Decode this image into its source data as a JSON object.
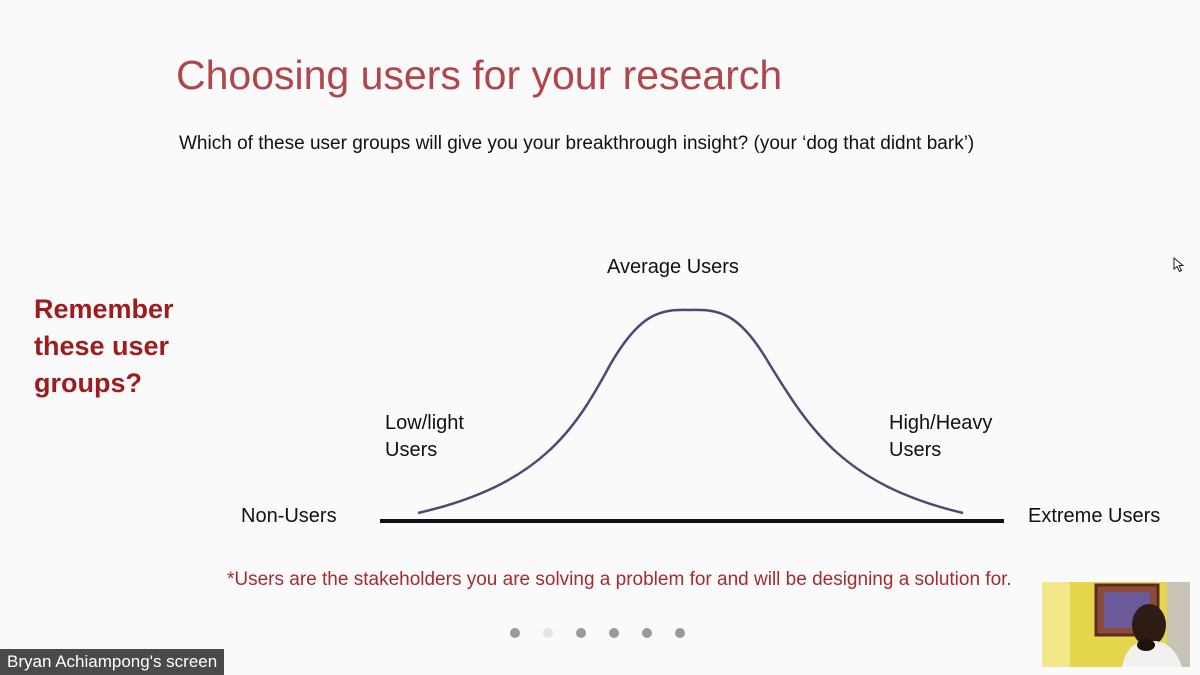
{
  "slide": {
    "title": "Choosing users for your research",
    "subtitle": "Which of these user groups will give you your breakthrough insight? (your ‘dog that didnt bark’)",
    "remember_text": "Remember these user groups?",
    "curve_labels": {
      "average": "Average Users",
      "low_line1": "Low/light",
      "low_line2": "Users",
      "high_line1": "High/Heavy",
      "high_line2": "Users",
      "non_users": "Non-Users",
      "extreme": "Extreme Users"
    },
    "footnote": "*Users are the stakeholders you are solving a problem for and will be designing a solution for."
  },
  "pagination": {
    "count": 6,
    "active_index": 1
  },
  "presenter": {
    "label": "Bryan Achiampong's screen"
  },
  "icons": {
    "cursor": "mouse-pointer-icon",
    "video": "participant-video-thumbnail"
  },
  "colors": {
    "title": "#b0464b",
    "remember": "#9e1b1e",
    "footnote": "#a22c33",
    "curve": "#4c4a75"
  }
}
